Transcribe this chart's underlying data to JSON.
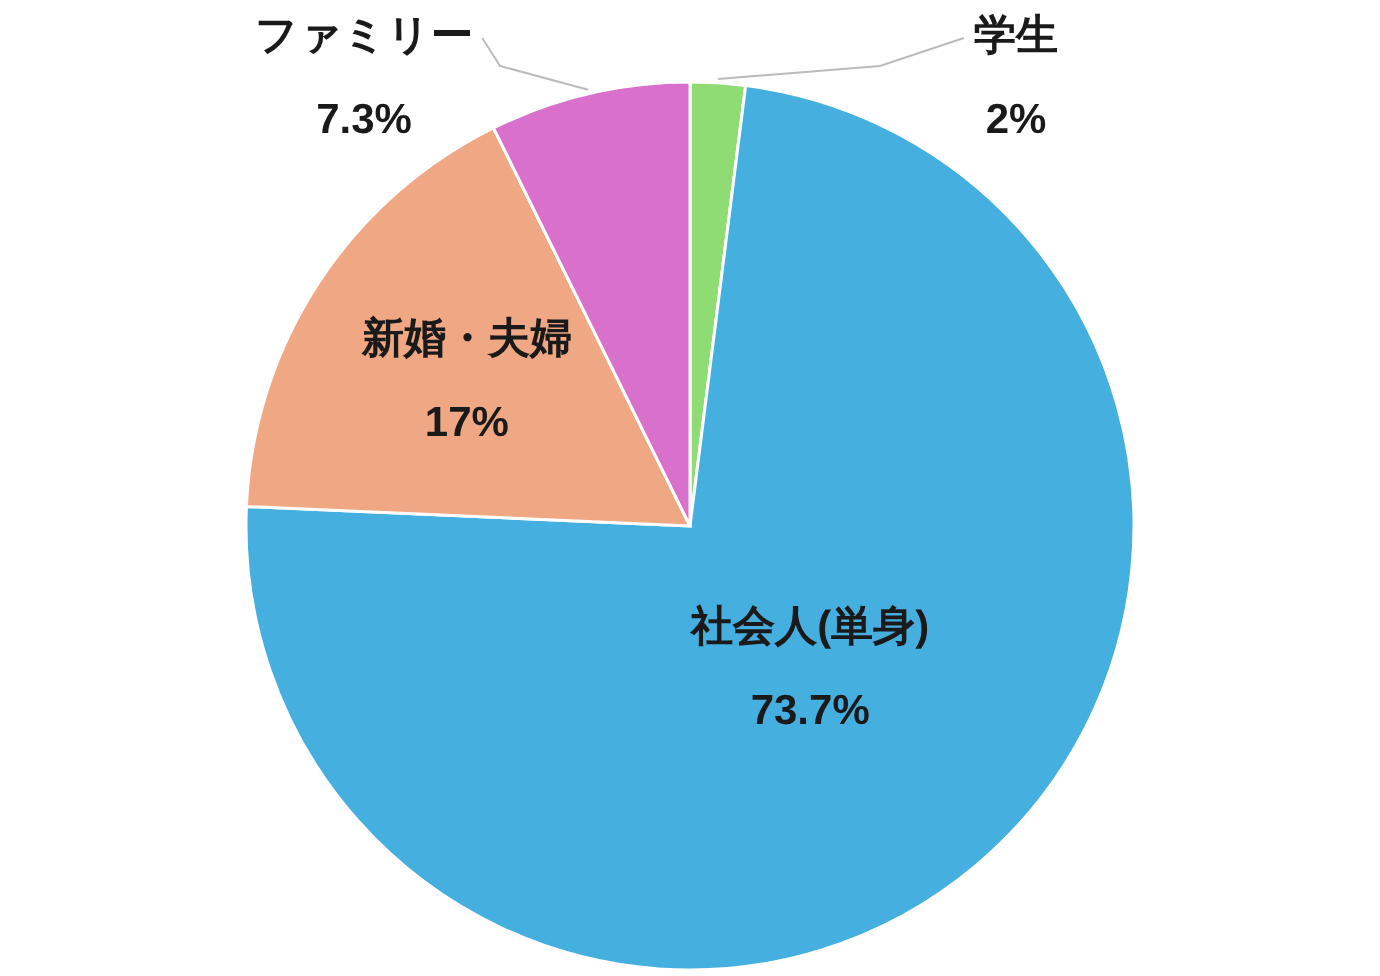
{
  "chart_data": {
    "type": "pie",
    "categories": [
      "学生",
      "社会人(単身)",
      "新婚・夫婦",
      "ファミリー"
    ],
    "values": [
      2,
      73.7,
      17,
      7.3
    ],
    "colors": [
      "#8fdc74",
      "#45b0e0",
      "#f0a884",
      "#d870cc"
    ],
    "value_labels": [
      "2%",
      "73.7%",
      "17%",
      "7.3%"
    ]
  }
}
